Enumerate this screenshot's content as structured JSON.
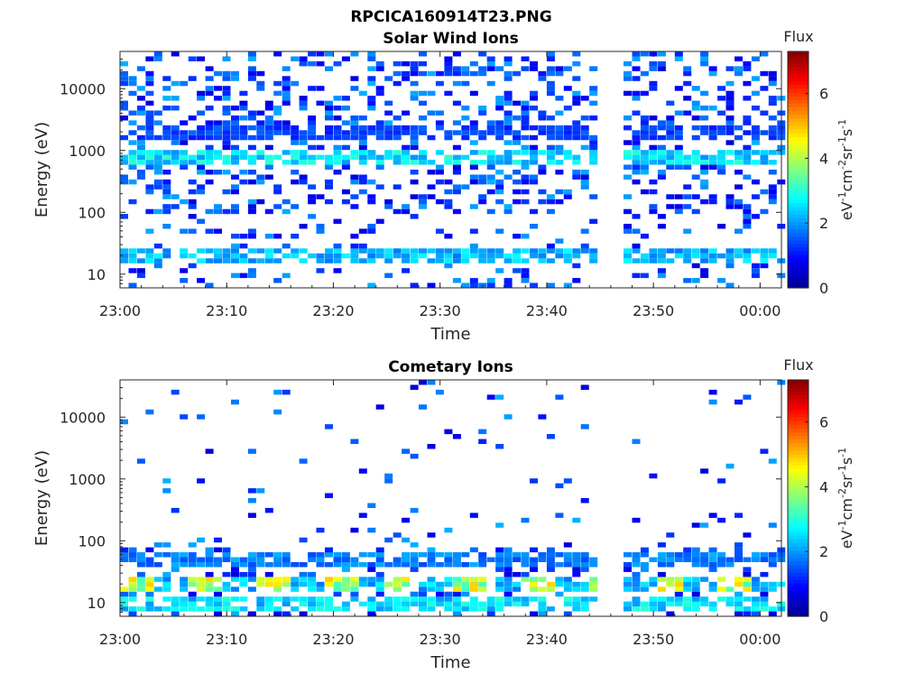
{
  "figure": {
    "file_title": "RPCICA160914T23.PNG"
  },
  "colors": {
    "colormap": [
      "#00008f",
      "#0000ff",
      "#0080ff",
      "#00ffff",
      "#80ff80",
      "#ffff00",
      "#ff8000",
      "#ff0000",
      "#800000"
    ],
    "axis": "#262626",
    "background": "#ffffff"
  },
  "chart_data": [
    {
      "type": "heatmap",
      "title": "Solar Wind Ions",
      "xlabel": "Time",
      "ylabel": "Energy (eV)",
      "y_scale": "log",
      "x_range": [
        "23:00",
        "00:02"
      ],
      "ylim": [
        6,
        40000
      ],
      "x_ticks": [
        "23:00",
        "23:10",
        "23:20",
        "23:30",
        "23:40",
        "23:50",
        "00:00"
      ],
      "y_ticks": [
        "10",
        "100",
        "1000",
        "10000"
      ],
      "colorbar": {
        "label_top": "Flux",
        "unit": "eV-1cm-2sr-1s-1",
        "range": [
          0,
          7.3
        ],
        "ticks": [
          "0",
          "2",
          "4",
          "6"
        ]
      },
      "data_gap": [
        "23:44",
        "23:47"
      ],
      "dominant_levels": [
        {
          "energy": 2000,
          "flux": 1.5
        },
        {
          "energy": 800,
          "flux": 2.8
        },
        {
          "energy": 20,
          "flux": 2.5
        }
      ]
    },
    {
      "type": "heatmap",
      "title": "Cometary Ions",
      "xlabel": "Time",
      "ylabel": "Energy (eV)",
      "y_scale": "log",
      "x_range": [
        "23:00",
        "00:02"
      ],
      "ylim": [
        6,
        40000
      ],
      "x_ticks": [
        "23:00",
        "23:10",
        "23:20",
        "23:30",
        "23:40",
        "23:50",
        "00:00"
      ],
      "y_ticks": [
        "10",
        "100",
        "1000",
        "10000"
      ],
      "colorbar": {
        "label_top": "Flux",
        "unit": "eV-1cm-2sr-1s-1",
        "range": [
          0,
          7.3
        ],
        "ticks": [
          "0",
          "2",
          "4",
          "6"
        ]
      },
      "data_gap": [
        "23:44",
        "23:47"
      ],
      "dominant_levels": [
        {
          "energy": 20,
          "flux": 4.5
        },
        {
          "energy": 10,
          "flux": 2.8
        },
        {
          "energy": 50,
          "flux": 2.0
        }
      ]
    }
  ]
}
